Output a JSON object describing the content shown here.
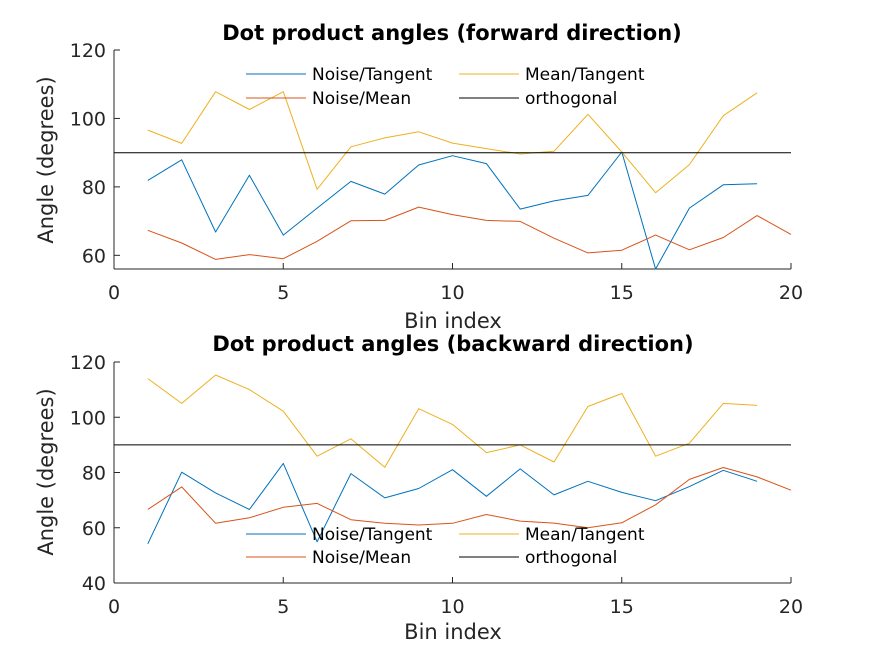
{
  "colors": {
    "noise_tangent": "#0072BD",
    "mean_tangent": "#EDB120",
    "noise_mean": "#D95319",
    "orthogonal": "#000000",
    "axis": "#262626"
  },
  "chart_data": [
    {
      "type": "line",
      "title": "Dot product angles (forward direction)",
      "xlabel": "Bin index",
      "ylabel": "Angle (degrees)",
      "xlim": [
        0,
        20
      ],
      "ylim": [
        56,
        120
      ],
      "xticks": [
        0,
        5,
        10,
        15,
        20
      ],
      "yticks": [
        60,
        80,
        100,
        120
      ],
      "grid": false,
      "legend_position": "top",
      "series": [
        {
          "name": "Noise/Tangent",
          "color_key": "noise_tangent",
          "x": [
            1,
            2,
            3,
            4,
            5,
            6,
            7,
            8,
            9,
            10,
            11,
            12,
            13,
            14,
            15,
            16,
            17,
            18,
            19
          ],
          "y": [
            81.9,
            87.9,
            66.8,
            83.4,
            65.9,
            73.8,
            81.6,
            77.9,
            86.4,
            89.1,
            86.8,
            73.5,
            75.9,
            77.5,
            90.2,
            56.0,
            73.8,
            80.6,
            80.9
          ]
        },
        {
          "name": "Mean/Tangent",
          "color_key": "mean_tangent",
          "x": [
            1,
            2,
            3,
            4,
            5,
            6,
            7,
            8,
            9,
            10,
            11,
            12,
            13,
            14,
            15,
            16,
            17,
            18,
            19
          ],
          "y": [
            96.6,
            92.7,
            107.8,
            102.6,
            107.8,
            79.3,
            91.7,
            94.3,
            96.1,
            92.8,
            91.2,
            89.6,
            90.4,
            101.2,
            90.2,
            78.3,
            86.5,
            100.8,
            107.5
          ]
        },
        {
          "name": "Noise/Mean",
          "color_key": "noise_mean",
          "x": [
            1,
            2,
            3,
            4,
            5,
            6,
            7,
            8,
            9,
            10,
            11,
            12,
            13,
            14,
            15,
            16,
            17,
            18,
            19,
            20
          ],
          "y": [
            67.3,
            63.6,
            58.8,
            60.2,
            59.0,
            64.1,
            70.1,
            70.2,
            74.1,
            71.9,
            70.2,
            69.9,
            65.0,
            60.7,
            61.5,
            65.9,
            61.6,
            65.2,
            71.6,
            66.1
          ]
        },
        {
          "name": "orthogonal",
          "color_key": "orthogonal",
          "x": [
            0,
            20
          ],
          "y": [
            90,
            90
          ]
        }
      ]
    },
    {
      "type": "line",
      "title": "Dot product angles (backward direction)",
      "xlabel": "Bin index",
      "ylabel": "Angle (degrees)",
      "xlim": [
        0,
        20
      ],
      "ylim": [
        40,
        120
      ],
      "xticks": [
        0,
        5,
        10,
        15,
        20
      ],
      "yticks": [
        40,
        60,
        80,
        100,
        120
      ],
      "grid": false,
      "legend_position": "bottom",
      "series": [
        {
          "name": "Noise/Tangent",
          "color_key": "noise_tangent",
          "x": [
            1,
            2,
            3,
            4,
            5,
            6,
            7,
            8,
            9,
            10,
            11,
            12,
            13,
            14,
            15,
            16,
            17,
            18,
            19
          ],
          "y": [
            54.2,
            80.1,
            72.6,
            66.6,
            83.3,
            54.9,
            79.6,
            70.8,
            74.2,
            81.0,
            71.4,
            81.3,
            71.9,
            76.8,
            72.8,
            69.8,
            74.9,
            80.8,
            76.8
          ]
        },
        {
          "name": "Mean/Tangent",
          "color_key": "mean_tangent",
          "x": [
            1,
            2,
            3,
            4,
            5,
            6,
            7,
            8,
            9,
            10,
            11,
            12,
            13,
            14,
            15,
            16,
            17,
            18,
            19
          ],
          "y": [
            114.0,
            105.0,
            115.3,
            110.0,
            102.2,
            85.9,
            92.2,
            81.9,
            103.1,
            97.4,
            87.2,
            90.0,
            83.8,
            103.9,
            108.6,
            85.9,
            90.6,
            105.0,
            104.3
          ]
        },
        {
          "name": "Noise/Mean",
          "color_key": "noise_mean",
          "x": [
            1,
            2,
            3,
            4,
            5,
            6,
            7,
            8,
            9,
            10,
            11,
            12,
            13,
            14,
            15,
            16,
            17,
            18,
            19,
            20
          ],
          "y": [
            66.6,
            74.8,
            61.6,
            63.6,
            67.4,
            68.8,
            62.9,
            61.6,
            61.0,
            61.6,
            64.8,
            62.4,
            61.7,
            60.0,
            61.8,
            68.3,
            77.5,
            81.8,
            78.4,
            73.6
          ]
        },
        {
          "name": "orthogonal",
          "color_key": "orthogonal",
          "x": [
            0,
            20
          ],
          "y": [
            90,
            90
          ]
        }
      ]
    }
  ]
}
